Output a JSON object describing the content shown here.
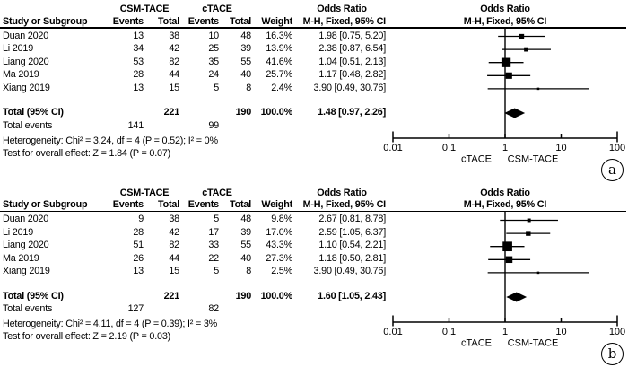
{
  "labels": {
    "study_col": "Study or Subgroup",
    "group1": "CSM-TACE",
    "group2": "cTACE",
    "events": "Events",
    "total": "Total",
    "weight": "Weight",
    "odds_ratio": "Odds Ratio",
    "mh_fixed": "M-H, Fixed, 95% CI",
    "total_ci": "Total (95% CI)",
    "total_events": "Total events"
  },
  "chart_data": [
    {
      "type": "scatter",
      "subtype": "forest-plot-meta-analysis",
      "tag": "a",
      "effect_measure": "Odds Ratio (M-H, Fixed, 95% CI)",
      "x_scale": "log10",
      "x_range": [
        0.01,
        100
      ],
      "x_ticks": [
        0.01,
        0.1,
        1,
        10,
        100
      ],
      "x_tick_labels": [
        "0.01",
        "0.1",
        "1",
        "10",
        "100"
      ],
      "favours": {
        "left": "cTACE",
        "right": "CSM-TACE"
      },
      "studies": [
        {
          "name": "Duan 2020",
          "group1_events": 13,
          "group1_total": 38,
          "group2_events": 10,
          "group2_total": 48,
          "weight": "16.3%",
          "weight_value": 16.3,
          "or": 1.98,
          "ci_low": 0.75,
          "ci_high": 5.2,
          "or_label": "1.98 [0.75, 5.20]"
        },
        {
          "name": "Li 2019",
          "group1_events": 34,
          "group1_total": 42,
          "group2_events": 25,
          "group2_total": 39,
          "weight": "13.9%",
          "weight_value": 13.9,
          "or": 2.38,
          "ci_low": 0.87,
          "ci_high": 6.54,
          "or_label": "2.38 [0.87, 6.54]"
        },
        {
          "name": "Liang 2020",
          "group1_events": 53,
          "group1_total": 82,
          "group2_events": 35,
          "group2_total": 55,
          "weight": "41.6%",
          "weight_value": 41.6,
          "or": 1.04,
          "ci_low": 0.51,
          "ci_high": 2.13,
          "or_label": "1.04 [0.51, 2.13]"
        },
        {
          "name": "Ma 2019",
          "group1_events": 28,
          "group1_total": 44,
          "group2_events": 24,
          "group2_total": 40,
          "weight": "25.7%",
          "weight_value": 25.7,
          "or": 1.17,
          "ci_low": 0.48,
          "ci_high": 2.82,
          "or_label": "1.17 [0.48, 2.82]"
        },
        {
          "name": "Xiang 2019",
          "group1_events": 13,
          "group1_total": 15,
          "group2_events": 5,
          "group2_total": 8,
          "weight": "2.4%",
          "weight_value": 2.4,
          "or": 3.9,
          "ci_low": 0.49,
          "ci_high": 30.76,
          "or_label": "3.90 [0.49, 30.76]"
        }
      ],
      "total": {
        "group1_total": 221,
        "group2_total": 190,
        "weight": "100.0%",
        "or": 1.48,
        "ci_low": 0.97,
        "ci_high": 2.26,
        "or_label": "1.48 [0.97, 2.26]"
      },
      "total_events": {
        "group1": 141,
        "group2": 99
      },
      "heterogeneity": "Heterogeneity: Chi² = 3.24, df = 4 (P = 0.52); I² = 0%",
      "overall_effect": "Test for overall effect: Z = 1.84 (P = 0.07)"
    },
    {
      "type": "scatter",
      "subtype": "forest-plot-meta-analysis",
      "tag": "b",
      "effect_measure": "Odds Ratio (M-H, Fixed, 95% CI)",
      "x_scale": "log10",
      "x_range": [
        0.01,
        100
      ],
      "x_ticks": [
        0.01,
        0.1,
        1,
        10,
        100
      ],
      "x_tick_labels": [
        "0.01",
        "0.1",
        "1",
        "10",
        "100"
      ],
      "favours": {
        "left": "cTACE",
        "right": "CSM-TACE"
      },
      "studies": [
        {
          "name": "Duan 2020",
          "group1_events": 9,
          "group1_total": 38,
          "group2_events": 5,
          "group2_total": 48,
          "weight": "9.8%",
          "weight_value": 9.8,
          "or": 2.67,
          "ci_low": 0.81,
          "ci_high": 8.78,
          "or_label": "2.67 [0.81, 8.78]"
        },
        {
          "name": "Li 2019",
          "group1_events": 28,
          "group1_total": 42,
          "group2_events": 17,
          "group2_total": 39,
          "weight": "17.0%",
          "weight_value": 17.0,
          "or": 2.59,
          "ci_low": 1.05,
          "ci_high": 6.37,
          "or_label": "2.59 [1.05, 6.37]"
        },
        {
          "name": "Liang 2020",
          "group1_events": 51,
          "group1_total": 82,
          "group2_events": 33,
          "group2_total": 55,
          "weight": "43.3%",
          "weight_value": 43.3,
          "or": 1.1,
          "ci_low": 0.54,
          "ci_high": 2.21,
          "or_label": "1.10 [0.54, 2.21]"
        },
        {
          "name": "Ma 2019",
          "group1_events": 26,
          "group1_total": 44,
          "group2_events": 22,
          "group2_total": 40,
          "weight": "27.3%",
          "weight_value": 27.3,
          "or": 1.18,
          "ci_low": 0.5,
          "ci_high": 2.81,
          "or_label": "1.18 [0.50, 2.81]"
        },
        {
          "name": "Xiang 2019",
          "group1_events": 13,
          "group1_total": 15,
          "group2_events": 5,
          "group2_total": 8,
          "weight": "2.5%",
          "weight_value": 2.5,
          "or": 3.9,
          "ci_low": 0.49,
          "ci_high": 30.76,
          "or_label": "3.90 [0.49, 30.76]"
        }
      ],
      "total": {
        "group1_total": 221,
        "group2_total": 190,
        "weight": "100.0%",
        "or": 1.6,
        "ci_low": 1.05,
        "ci_high": 2.43,
        "or_label": "1.60 [1.05, 2.43]"
      },
      "total_events": {
        "group1": 127,
        "group2": 82
      },
      "heterogeneity": "Heterogeneity: Chi² = 4.11, df = 4 (P = 0.39); I² = 3%",
      "overall_effect": "Test for overall effect: Z = 2.19 (P = 0.03)"
    }
  ]
}
